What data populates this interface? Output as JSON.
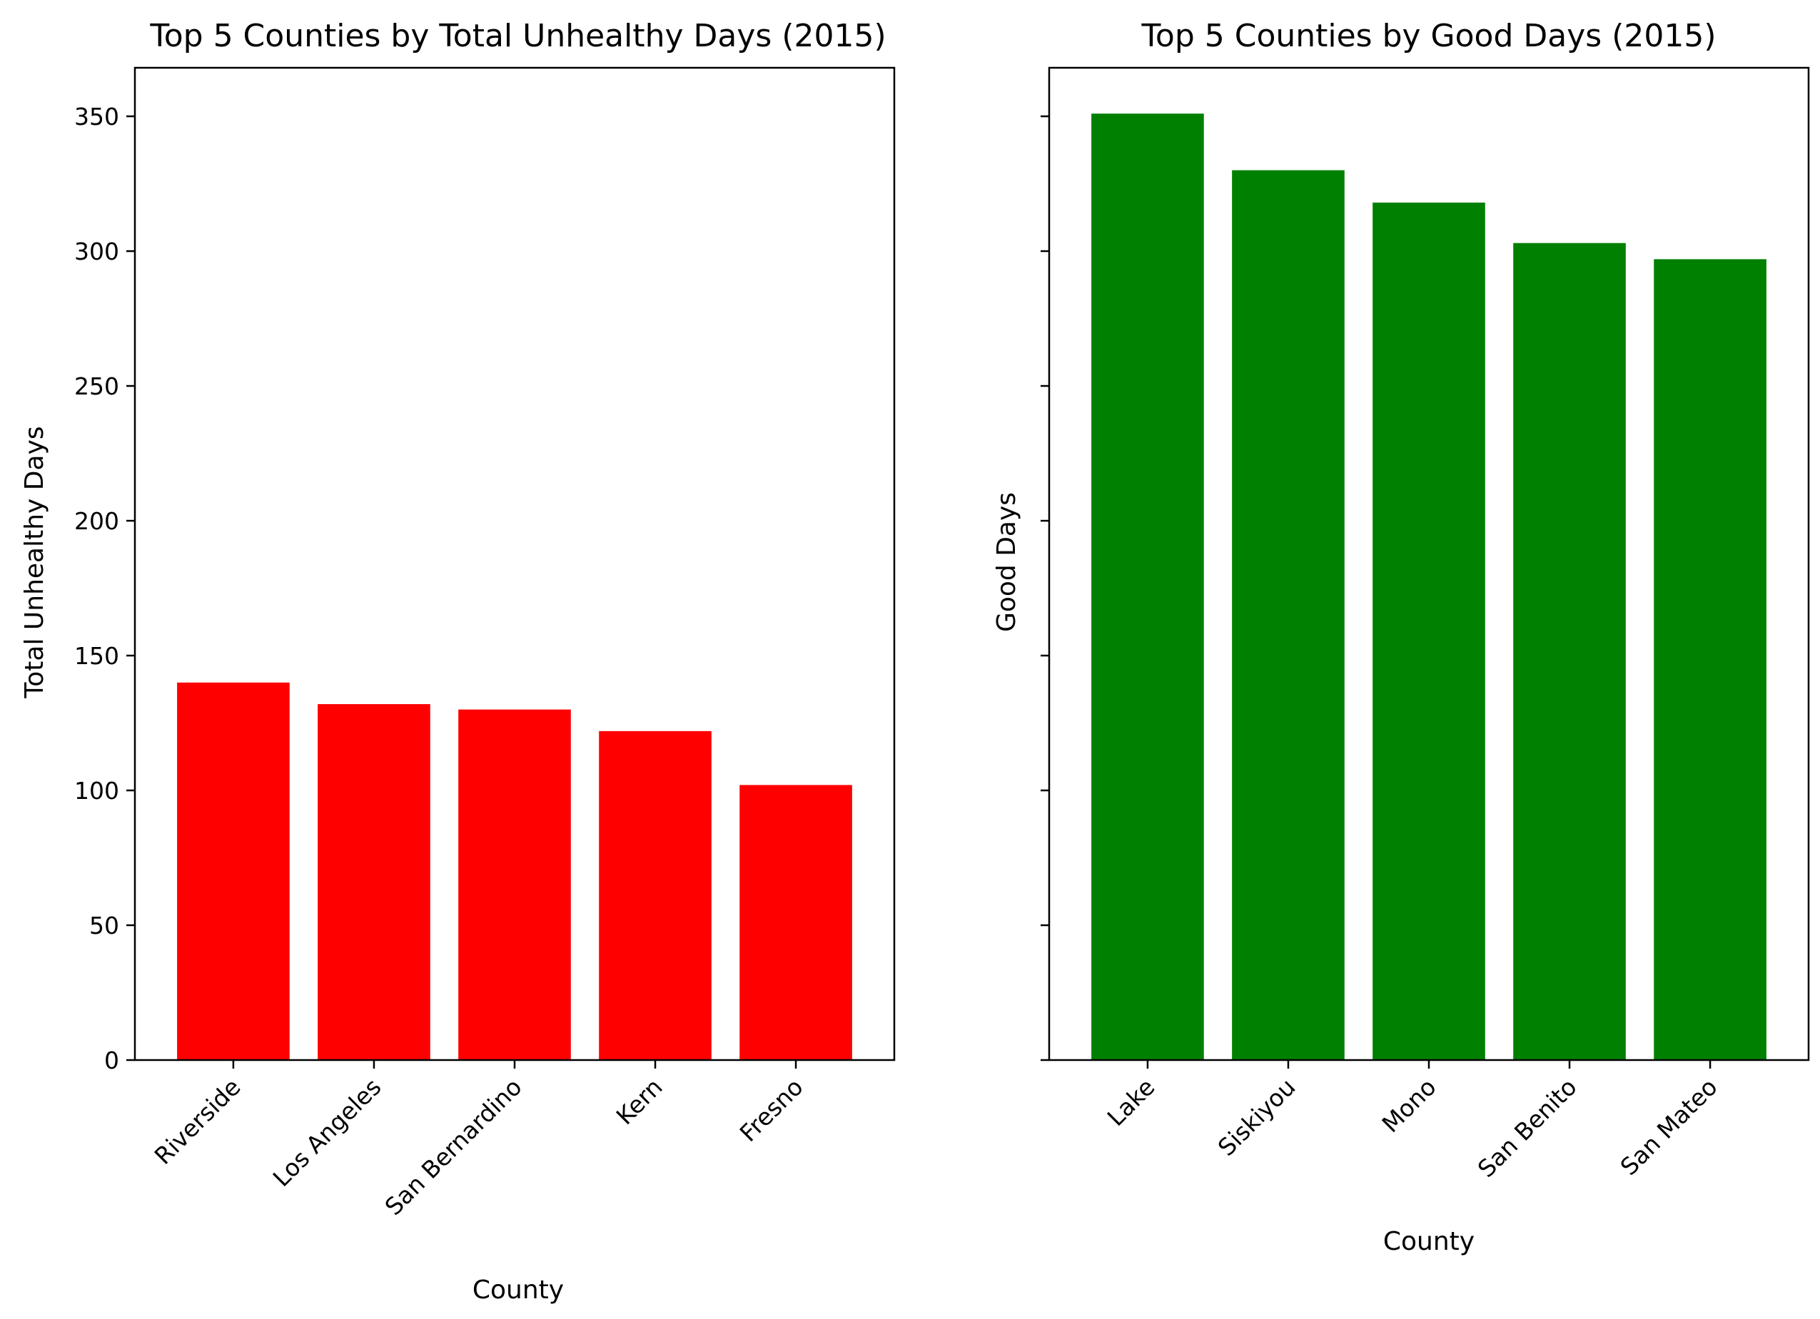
{
  "chart_data": [
    {
      "type": "bar",
      "title": "Top 5 Counties by Total Unhealthy Days (2015)",
      "xlabel": "County",
      "ylabel": "Total Unhealthy Days",
      "categories": [
        "Riverside",
        "Los Angeles",
        "San Bernardino",
        "Kern",
        "Fresno"
      ],
      "values": [
        140,
        132,
        130,
        122,
        102
      ],
      "color": "#ff0000",
      "ylim": [
        0,
        368
      ],
      "yticks": [
        "0",
        "50",
        "100",
        "150",
        "200",
        "250",
        "300",
        "350"
      ],
      "ytick_values": [
        0,
        50,
        100,
        150,
        200,
        250,
        300,
        350
      ],
      "show_ytick_labels": true,
      "grid": false
    },
    {
      "type": "bar",
      "title": "Top 5 Counties by Good Days (2015)",
      "xlabel": "County",
      "ylabel": "Good Days",
      "categories": [
        "Lake",
        "Siskiyou",
        "Mono",
        "San Benito",
        "San Mateo"
      ],
      "values": [
        351,
        330,
        318,
        303,
        297
      ],
      "color": "#008000",
      "ylim": [
        0,
        368
      ],
      "yticks": [
        "0",
        "50",
        "100",
        "150",
        "200",
        "250",
        "300",
        "350"
      ],
      "ytick_values": [
        0,
        50,
        100,
        150,
        200,
        250,
        300,
        350
      ],
      "show_ytick_labels": false,
      "grid": false
    }
  ]
}
